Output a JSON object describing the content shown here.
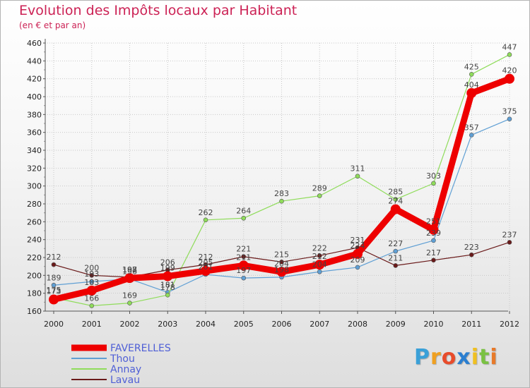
{
  "title": "Evolution des Impôts locaux par Habitant",
  "subtitle": "(en € et par an)",
  "logo": {
    "letters": [
      "P",
      "r",
      "o",
      "x",
      "i",
      "t",
      "i"
    ],
    "colors": [
      "#3aa0d8",
      "#f0a020",
      "#e84b2a",
      "#2b7fd0",
      "#f0c020",
      "#7ac143",
      "#e87a2a"
    ]
  },
  "chart_data": {
    "type": "line",
    "x": [
      "2000",
      "2001",
      "2002",
      "2003",
      "2004",
      "2005",
      "2006",
      "2007",
      "2008",
      "2009",
      "2010",
      "2011",
      "2012"
    ],
    "ylim": [
      160,
      460
    ],
    "yticks": [
      160,
      180,
      200,
      220,
      240,
      260,
      280,
      300,
      320,
      340,
      360,
      380,
      400,
      420,
      440,
      460
    ],
    "grid": true,
    "legend": "bottom-left",
    "series": [
      {
        "name": "FAVERELLES",
        "color": "#ee0000",
        "width": 9,
        "marker": 7,
        "values": [
          173,
          183,
          197,
          199,
          205,
          211,
          204,
          212,
          224,
          274,
          251,
          404,
          420
        ],
        "labels": [
          "173",
          "183",
          "197",
          "199",
          "205",
          "211",
          "204",
          "212",
          "224",
          "274",
          "251",
          "404",
          "420"
        ]
      },
      {
        "name": "Thou",
        "color": "#5f9fd4",
        "width": 1.2,
        "marker": 3,
        "values": [
          189,
          193,
          196,
          181,
          201,
          197,
          198,
          204,
          209,
          227,
          239,
          357,
          375
        ],
        "labels": [
          "189",
          "193",
          "196",
          "181",
          "201",
          "197",
          "198",
          "204",
          "209",
          "227",
          "239",
          "357",
          "375"
        ]
      },
      {
        "name": "Annay",
        "color": "#8fdc5a",
        "width": 1.2,
        "marker": 3,
        "values": [
          175,
          166,
          169,
          178,
          262,
          264,
          283,
          289,
          311,
          285,
          303,
          425,
          447
        ],
        "labels": [
          "175",
          "166",
          "169",
          "178",
          "262",
          "264",
          "283",
          "289",
          "311",
          "285",
          "303",
          "425",
          "447"
        ]
      },
      {
        "name": "Lavau",
        "color": "#6a1a1a",
        "width": 1.2,
        "marker": 3,
        "values": [
          212,
          200,
          198,
          206,
          212,
          221,
          215,
          222,
          231,
          211,
          217,
          223,
          237
        ],
        "labels": [
          "212",
          "200",
          "198",
          "206",
          "212",
          "221",
          "215",
          "222",
          "231",
          "211",
          "217",
          "223",
          "237"
        ]
      }
    ]
  }
}
